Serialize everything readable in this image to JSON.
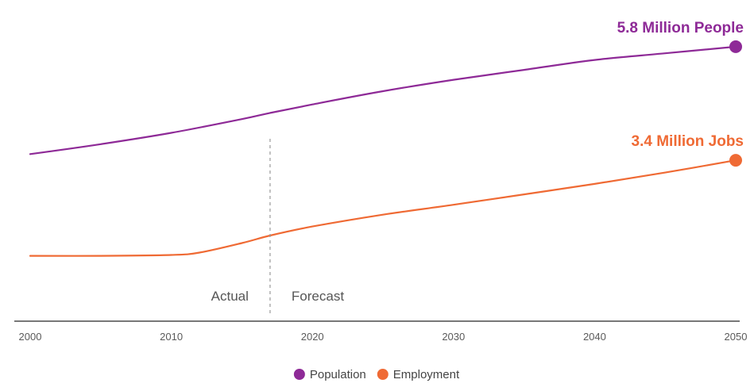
{
  "chart_data": {
    "type": "line",
    "x_ticks": [
      2000,
      2010,
      2020,
      2030,
      2040,
      2050
    ],
    "xlim": [
      2000,
      2050
    ],
    "ylim": [
      0,
      6.2
    ],
    "divider_x": 2017,
    "annotations": {
      "left": "Actual",
      "right": "Forecast"
    },
    "series": [
      {
        "name": "Population",
        "color": "#8e2a97",
        "end_label": "5.8 Million People",
        "points": [
          [
            2000,
            3.53
          ],
          [
            2005,
            3.74
          ],
          [
            2010,
            3.98
          ],
          [
            2015,
            4.27
          ],
          [
            2017,
            4.4
          ],
          [
            2020,
            4.58
          ],
          [
            2025,
            4.86
          ],
          [
            2030,
            5.1
          ],
          [
            2035,
            5.31
          ],
          [
            2040,
            5.52
          ],
          [
            2045,
            5.66
          ],
          [
            2050,
            5.8
          ]
        ]
      },
      {
        "name": "Employment",
        "color": "#ef6a34",
        "end_label": "3.4 Million Jobs",
        "points": [
          [
            2000,
            1.38
          ],
          [
            2005,
            1.38
          ],
          [
            2010,
            1.4
          ],
          [
            2012,
            1.45
          ],
          [
            2015,
            1.65
          ],
          [
            2017,
            1.81
          ],
          [
            2020,
            2.0
          ],
          [
            2025,
            2.25
          ],
          [
            2030,
            2.46
          ],
          [
            2035,
            2.68
          ],
          [
            2040,
            2.9
          ],
          [
            2045,
            3.14
          ],
          [
            2050,
            3.4
          ]
        ]
      }
    ]
  }
}
